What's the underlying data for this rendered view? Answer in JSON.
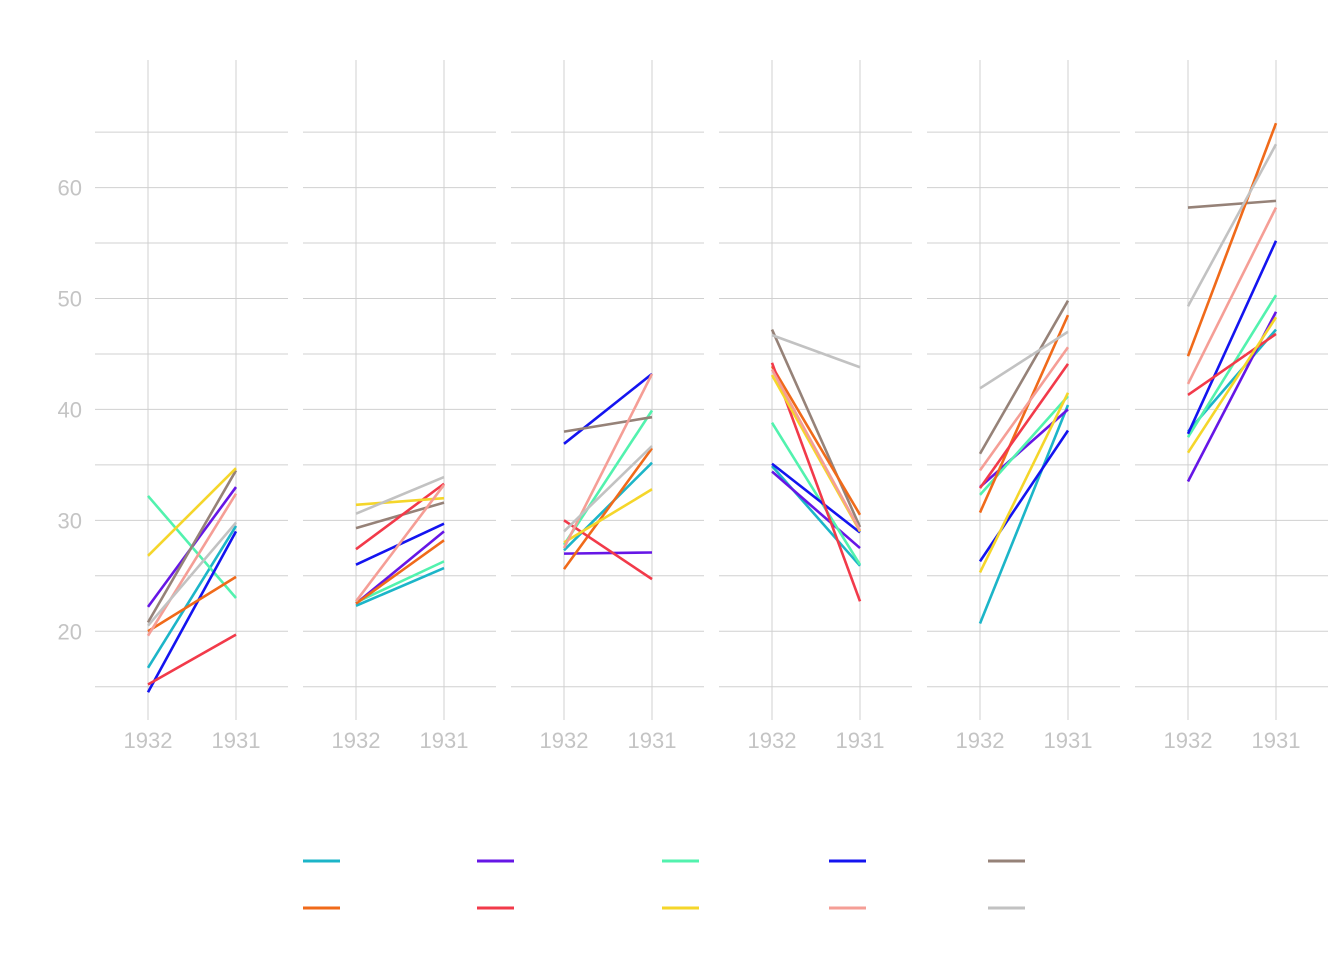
{
  "chart_data": {
    "type": "line",
    "title": "",
    "xlabel": "",
    "ylabel": "",
    "x_categories": [
      "1932",
      "1931"
    ],
    "ylim": [
      12,
      71.5
    ],
    "y_ticks": [
      20,
      30,
      40,
      50,
      60
    ],
    "grid": true,
    "legend_position": "bottom",
    "series_colors": [
      "#1cb5c8",
      "#6616e6",
      "#52f2ae",
      "#1414f0",
      "#968278",
      "#f06a1a",
      "#f23a4a",
      "#f5d62a",
      "#f59e96",
      "#c2c2c2"
    ],
    "panels": [
      {
        "lines": [
          [
            16.7,
            29.5
          ],
          [
            22.2,
            33.0
          ],
          [
            32.2,
            23.0
          ],
          [
            14.5,
            29.0
          ],
          [
            20.8,
            34.5
          ],
          [
            20.0,
            24.9
          ],
          [
            15.2,
            19.7
          ],
          [
            26.8,
            34.7
          ],
          [
            19.6,
            32.4
          ],
          [
            20.5,
            29.8
          ]
        ]
      },
      {
        "lines": [
          [
            22.3,
            25.7
          ],
          [
            22.5,
            29.0
          ],
          [
            22.6,
            26.3
          ],
          [
            26.0,
            29.7
          ],
          [
            29.3,
            31.6
          ],
          [
            22.5,
            28.2
          ],
          [
            27.4,
            33.3
          ],
          [
            31.4,
            32.0
          ],
          [
            22.7,
            33.2
          ],
          [
            30.6,
            33.9
          ]
        ]
      },
      {
        "lines": [
          [
            27.3,
            35.2
          ],
          [
            27.0,
            27.1
          ],
          [
            27.8,
            39.9
          ],
          [
            36.9,
            43.2
          ],
          [
            38.0,
            39.3
          ],
          [
            25.6,
            36.5
          ],
          [
            30.0,
            24.7
          ],
          [
            28.0,
            32.8
          ],
          [
            27.5,
            43.2
          ],
          [
            29.0,
            36.7
          ]
        ]
      },
      {
        "lines": [
          [
            34.9,
            25.9
          ],
          [
            34.4,
            27.5
          ],
          [
            38.8,
            26.0
          ],
          [
            35.1,
            28.9
          ],
          [
            47.2,
            29.4
          ],
          [
            43.9,
            30.5
          ],
          [
            44.2,
            22.7
          ],
          [
            43.1,
            29.0
          ],
          [
            43.6,
            29.1
          ],
          [
            46.7,
            43.8
          ]
        ]
      },
      {
        "lines": [
          [
            20.7,
            40.4
          ],
          [
            33.0,
            40.0
          ],
          [
            32.3,
            41.2
          ],
          [
            26.3,
            38.1
          ],
          [
            36.0,
            49.8
          ],
          [
            30.7,
            48.5
          ],
          [
            32.9,
            44.1
          ],
          [
            25.3,
            41.5
          ],
          [
            34.5,
            45.6
          ],
          [
            41.9,
            47.0
          ]
        ]
      },
      {
        "lines": [
          [
            38.0,
            47.2
          ],
          [
            33.5,
            48.8
          ],
          [
            37.5,
            50.3
          ],
          [
            37.8,
            55.2
          ],
          [
            58.2,
            58.8
          ],
          [
            44.8,
            65.8
          ],
          [
            41.3,
            46.8
          ],
          [
            36.1,
            48.3
          ],
          [
            42.3,
            58.2
          ],
          [
            49.3,
            63.9
          ]
        ]
      }
    ]
  }
}
